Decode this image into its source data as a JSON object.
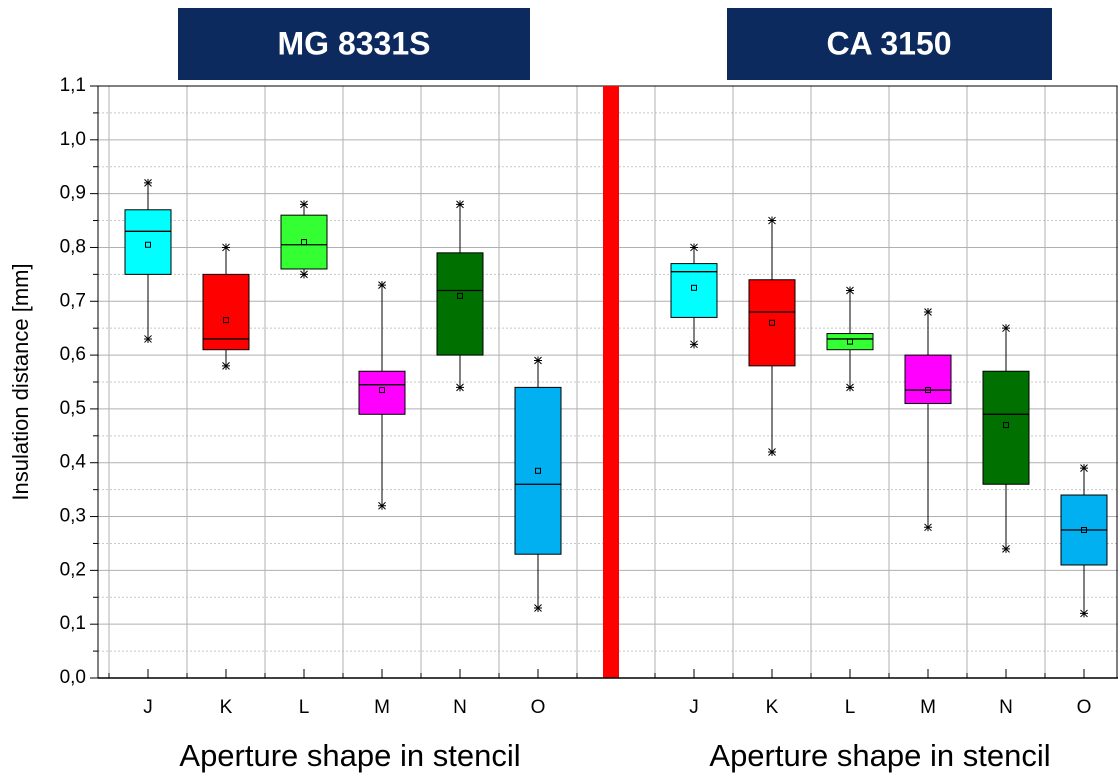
{
  "chart_data": [
    {
      "type": "box",
      "title": "MG 8331S",
      "x_label": "Aperture shape in stencil",
      "y_label": "Insulation distance [mm]",
      "categories": [
        "J",
        "K",
        "L",
        "M",
        "N",
        "O"
      ],
      "boxes": [
        {
          "color": "#00ffff",
          "min": 0.63,
          "q1": 0.75,
          "median": 0.83,
          "q3": 0.87,
          "max": 0.92,
          "mean": 0.805
        },
        {
          "color": "#ff0000",
          "min": 0.58,
          "q1": 0.61,
          "median": 0.63,
          "q3": 0.75,
          "max": 0.8,
          "mean": 0.665
        },
        {
          "color": "#33ff33",
          "min": 0.75,
          "q1": 0.76,
          "median": 0.805,
          "q3": 0.86,
          "max": 0.88,
          "mean": 0.81
        },
        {
          "color": "#ff00ff",
          "min": 0.32,
          "q1": 0.49,
          "median": 0.545,
          "q3": 0.57,
          "max": 0.73,
          "mean": 0.535
        },
        {
          "color": "#007000",
          "min": 0.54,
          "q1": 0.6,
          "median": 0.72,
          "q3": 0.79,
          "max": 0.88,
          "mean": 0.71
        },
        {
          "color": "#00b0f0",
          "min": 0.13,
          "q1": 0.23,
          "median": 0.36,
          "q3": 0.54,
          "max": 0.59,
          "mean": 0.385
        }
      ],
      "ylim": [
        0,
        1.1
      ],
      "yticks": [
        {
          "value": 0,
          "label": "0,0"
        },
        {
          "value": 0.1,
          "label": "0,1"
        },
        {
          "value": 0.2,
          "label": "0,2"
        },
        {
          "value": 0.3,
          "label": "0,3"
        },
        {
          "value": 0.4,
          "label": "0,4"
        },
        {
          "value": 0.5,
          "label": "0,5"
        },
        {
          "value": 0.6,
          "label": "0,6"
        },
        {
          "value": 0.7,
          "label": "0,7"
        },
        {
          "value": 0.8,
          "label": "0,8"
        },
        {
          "value": 0.9,
          "label": "0,9"
        },
        {
          "value": 1.0,
          "label": "1,0"
        },
        {
          "value": 1.1,
          "label": "1,1"
        }
      ],
      "grid": true
    },
    {
      "type": "box",
      "title": "CA 3150",
      "x_label": "Aperture shape in stencil",
      "categories": [
        "J",
        "K",
        "L",
        "M",
        "N",
        "O"
      ],
      "boxes": [
        {
          "color": "#00ffff",
          "min": 0.62,
          "q1": 0.67,
          "median": 0.755,
          "q3": 0.77,
          "max": 0.8,
          "mean": 0.725
        },
        {
          "color": "#ff0000",
          "min": 0.42,
          "q1": 0.58,
          "median": 0.68,
          "q3": 0.74,
          "max": 0.85,
          "mean": 0.66
        },
        {
          "color": "#33ff33",
          "min": 0.54,
          "q1": 0.61,
          "median": 0.63,
          "q3": 0.64,
          "max": 0.72,
          "mean": 0.625
        },
        {
          "color": "#ff00ff",
          "min": 0.28,
          "q1": 0.51,
          "median": 0.535,
          "q3": 0.6,
          "max": 0.68,
          "mean": 0.535
        },
        {
          "color": "#007000",
          "min": 0.24,
          "q1": 0.36,
          "median": 0.49,
          "q3": 0.57,
          "max": 0.65,
          "mean": 0.47
        },
        {
          "color": "#00b0f0",
          "min": 0.12,
          "q1": 0.21,
          "median": 0.275,
          "q3": 0.34,
          "max": 0.39,
          "mean": 0.275
        }
      ],
      "ylim": [
        0,
        1.1
      ],
      "grid": true
    }
  ]
}
